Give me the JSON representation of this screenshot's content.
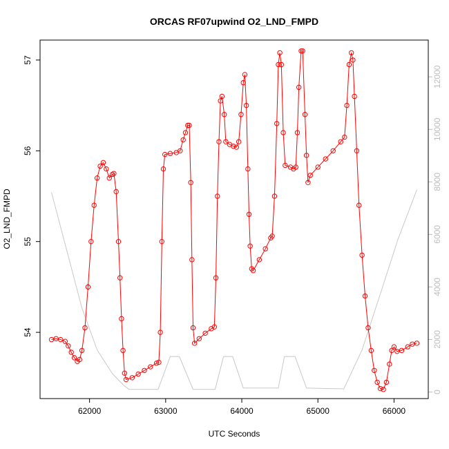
{
  "chart_data": {
    "type": "line",
    "title": "ORCAS RF07upwind O2_LND_FMPD",
    "xlabel": "UTC Seconds",
    "ylabel": "O2_LND_FMPD",
    "xlim": [
      61350,
      66450
    ],
    "ylim": [
      53.27,
      57.22
    ],
    "y2lim": [
      -250,
      13400
    ],
    "x_ticks": [
      62000,
      63000,
      64000,
      65000,
      66000
    ],
    "y_ticks": [
      54,
      55,
      56,
      57
    ],
    "y2_ticks": [
      0,
      2000,
      4000,
      6000,
      8000,
      10000,
      12000
    ],
    "grid": false,
    "legend": "none",
    "colors": {
      "series": "#ff0000",
      "secondary": "#c8c8c8",
      "axes": "#000000",
      "right_axis": "#bdbdbd"
    },
    "series": [
      {
        "axis": "left",
        "style": "line+open-circles",
        "points": [
          [
            61500,
            53.92
          ],
          [
            61560,
            53.93
          ],
          [
            61620,
            53.92
          ],
          [
            61680,
            53.9
          ],
          [
            61720,
            53.85
          ],
          [
            61760,
            53.78
          ],
          [
            61800,
            53.72
          ],
          [
            61840,
            53.68
          ],
          [
            61870,
            53.7
          ],
          [
            61900,
            53.8
          ],
          [
            61940,
            54.05
          ],
          [
            61980,
            54.5
          ],
          [
            62020,
            55.0
          ],
          [
            62060,
            55.4
          ],
          [
            62100,
            55.7
          ],
          [
            62140,
            55.83
          ],
          [
            62180,
            55.87
          ],
          [
            62220,
            55.8
          ],
          [
            62260,
            55.7
          ],
          [
            62300,
            55.74
          ],
          [
            62320,
            55.75
          ],
          [
            62350,
            55.55
          ],
          [
            62380,
            55.0
          ],
          [
            62400,
            54.6
          ],
          [
            62420,
            54.15
          ],
          [
            62440,
            53.8
          ],
          [
            62460,
            53.55
          ],
          [
            62480,
            53.48
          ],
          [
            62560,
            53.5
          ],
          [
            62640,
            53.54
          ],
          [
            62720,
            53.58
          ],
          [
            62800,
            53.62
          ],
          [
            62880,
            53.66
          ],
          [
            62910,
            53.67
          ],
          [
            62930,
            54.0
          ],
          [
            62950,
            55.0
          ],
          [
            62970,
            55.8
          ],
          [
            62990,
            55.96
          ],
          [
            63060,
            55.97
          ],
          [
            63140,
            55.98
          ],
          [
            63190,
            56.0
          ],
          [
            63230,
            56.12
          ],
          [
            63260,
            56.2
          ],
          [
            63290,
            56.28
          ],
          [
            63310,
            56.28
          ],
          [
            63330,
            55.65
          ],
          [
            63345,
            54.8
          ],
          [
            63360,
            54.05
          ],
          [
            63380,
            53.88
          ],
          [
            63440,
            53.93
          ],
          [
            63520,
            53.99
          ],
          [
            63600,
            54.04
          ],
          [
            63640,
            54.06
          ],
          [
            63660,
            54.6
          ],
          [
            63680,
            55.5
          ],
          [
            63700,
            56.1
          ],
          [
            63720,
            56.55
          ],
          [
            63740,
            56.6
          ],
          [
            63770,
            56.4
          ],
          [
            63790,
            56.1
          ],
          [
            63840,
            56.07
          ],
          [
            63890,
            56.05
          ],
          [
            63930,
            56.04
          ],
          [
            63960,
            56.1
          ],
          [
            63990,
            56.4
          ],
          [
            64020,
            56.75
          ],
          [
            64040,
            56.84
          ],
          [
            64060,
            56.5
          ],
          [
            64080,
            55.8
          ],
          [
            64095,
            55.3
          ],
          [
            64110,
            54.95
          ],
          [
            64130,
            54.7
          ],
          [
            64150,
            54.68
          ],
          [
            64230,
            54.8
          ],
          [
            64310,
            54.92
          ],
          [
            64380,
            55.04
          ],
          [
            64400,
            55.06
          ],
          [
            64430,
            55.5
          ],
          [
            64460,
            56.3
          ],
          [
            64480,
            56.95
          ],
          [
            64500,
            57.08
          ],
          [
            64520,
            56.95
          ],
          [
            64545,
            56.2
          ],
          [
            64570,
            55.84
          ],
          [
            64640,
            55.82
          ],
          [
            64680,
            55.8
          ],
          [
            64710,
            55.82
          ],
          [
            64730,
            56.2
          ],
          [
            64750,
            56.7
          ],
          [
            64780,
            57.1
          ],
          [
            64800,
            57.1
          ],
          [
            64830,
            56.4
          ],
          [
            64850,
            55.95
          ],
          [
            64870,
            55.65
          ],
          [
            64900,
            55.73
          ],
          [
            65000,
            55.82
          ],
          [
            65100,
            55.91
          ],
          [
            65200,
            56.0
          ],
          [
            65300,
            56.1
          ],
          [
            65350,
            56.15
          ],
          [
            65380,
            56.5
          ],
          [
            65410,
            56.95
          ],
          [
            65440,
            57.08
          ],
          [
            65460,
            57.0
          ],
          [
            65480,
            56.6
          ],
          [
            65510,
            56.0
          ],
          [
            65540,
            55.4
          ],
          [
            65580,
            54.85
          ],
          [
            65620,
            54.4
          ],
          [
            65660,
            54.05
          ],
          [
            65700,
            53.8
          ],
          [
            65740,
            53.58
          ],
          [
            65780,
            53.45
          ],
          [
            65820,
            53.38
          ],
          [
            65860,
            53.37
          ],
          [
            65900,
            53.45
          ],
          [
            65940,
            53.65
          ],
          [
            65970,
            53.8
          ],
          [
            66000,
            53.84
          ],
          [
            66040,
            53.79
          ],
          [
            66100,
            53.8
          ],
          [
            66180,
            53.84
          ],
          [
            66240,
            53.87
          ],
          [
            66300,
            53.88
          ]
        ]
      },
      {
        "axis": "right",
        "style": "line",
        "points": [
          [
            61500,
            7600
          ],
          [
            61700,
            5400
          ],
          [
            61900,
            3200
          ],
          [
            62100,
            1600
          ],
          [
            62300,
            700
          ],
          [
            62450,
            250
          ],
          [
            62520,
            100
          ],
          [
            62900,
            100
          ],
          [
            63060,
            1350
          ],
          [
            63180,
            1350
          ],
          [
            63360,
            100
          ],
          [
            63650,
            100
          ],
          [
            63760,
            1350
          ],
          [
            63880,
            1350
          ],
          [
            64020,
            150
          ],
          [
            64300,
            150
          ],
          [
            64480,
            150
          ],
          [
            64560,
            1350
          ],
          [
            64700,
            1350
          ],
          [
            64850,
            150
          ],
          [
            65100,
            130
          ],
          [
            65340,
            120
          ],
          [
            65580,
            1600
          ],
          [
            65850,
            4000
          ],
          [
            66050,
            5800
          ],
          [
            66300,
            7700
          ]
        ]
      }
    ]
  }
}
